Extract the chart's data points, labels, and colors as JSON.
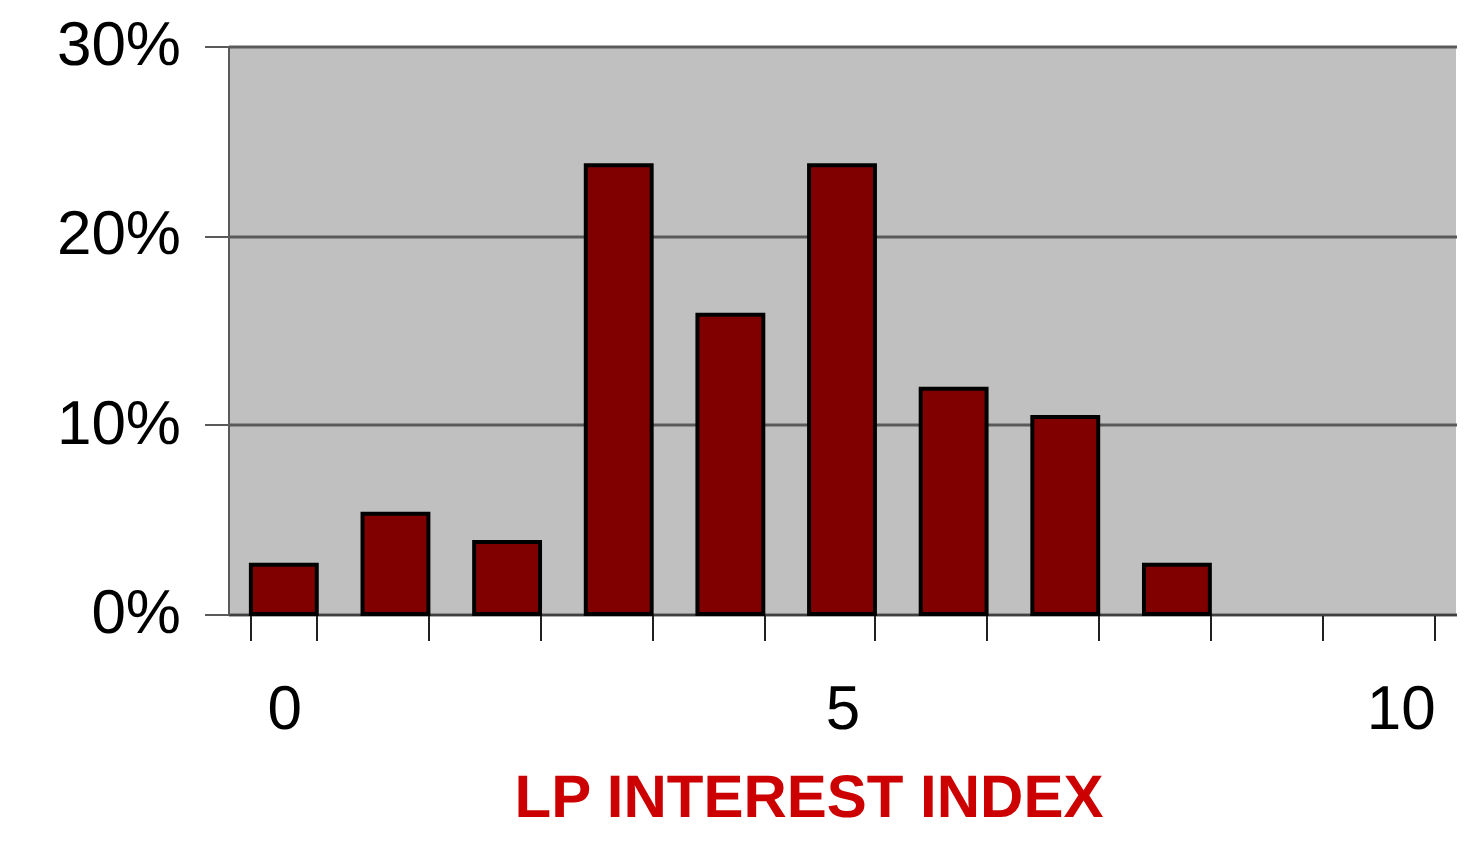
{
  "chart_data": {
    "type": "bar",
    "xlabel": "LP INTEREST INDEX",
    "categories": [
      "0",
      null,
      null,
      null,
      null,
      "5",
      null,
      null,
      null,
      null,
      "10"
    ],
    "values": [
      2.6,
      5.3,
      3.8,
      23.7,
      15.8,
      23.7,
      11.9,
      10.4,
      2.6,
      null,
      null
    ],
    "color": "#800000",
    "ylim": [
      0,
      30
    ],
    "yticks": [
      {
        "value": 0,
        "label": "0%"
      },
      {
        "value": 10,
        "label": "10%"
      },
      {
        "value": 20,
        "label": "20%"
      },
      {
        "value": 30,
        "label": "30%"
      }
    ],
    "grid": "y"
  }
}
